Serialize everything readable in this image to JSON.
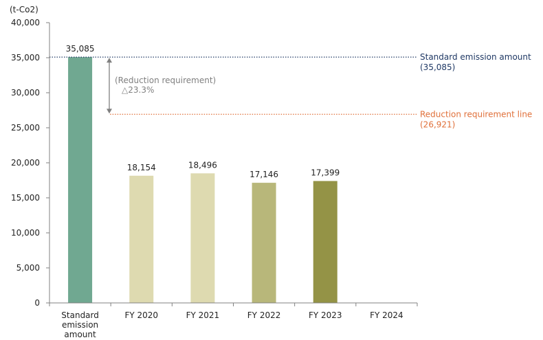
{
  "chart_data": {
    "type": "bar",
    "unit_label": "(t-Co2)",
    "ylim": [
      0,
      40000
    ],
    "yticks": [
      0,
      5000,
      10000,
      15000,
      20000,
      25000,
      30000,
      35000,
      40000
    ],
    "ytick_labels": [
      "0",
      "5,000",
      "10,000",
      "15,000",
      "20,000",
      "25,000",
      "30,000",
      "35,000",
      "40,000"
    ],
    "categories": [
      [
        "Standard",
        "emission",
        "amount"
      ],
      [
        "FY 2020"
      ],
      [
        "FY 2021"
      ],
      [
        "FY 2022"
      ],
      [
        "FY 2023"
      ],
      [
        "FY 2024"
      ]
    ],
    "values": [
      35085,
      18154,
      18496,
      17146,
      17399,
      null
    ],
    "value_labels": [
      "35,085",
      "18,154",
      "18,496",
      "17,146",
      "17,399",
      ""
    ],
    "bar_colors": [
      "#70a891",
      "#dedab0",
      "#dedab0",
      "#b8b77a",
      "#949346",
      null
    ],
    "reference_lines": [
      {
        "value": 35085,
        "label": "Standard emission amount",
        "value_label": "(35,085)",
        "color": "#1f3864"
      },
      {
        "value": 26921,
        "label": "Reduction requirement line",
        "value_label": "(26,921)",
        "color": "#e0703a"
      }
    ],
    "annotation": {
      "label": "(Reduction requirement)",
      "value_label": "△23.3%",
      "color": "#808080"
    },
    "grid": false
  }
}
